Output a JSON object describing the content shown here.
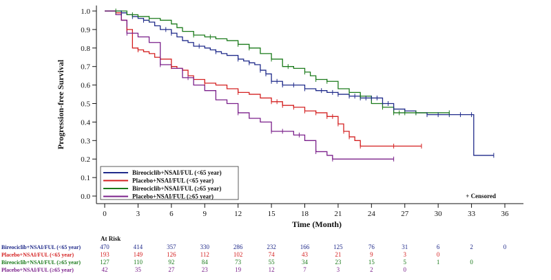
{
  "chart_data": {
    "type": "line",
    "subtype": "kaplan-meier",
    "title": "",
    "xlabel": "Time (Month)",
    "ylabel": "Progression-free Survival",
    "xlim": [
      0,
      36
    ],
    "ylim": [
      0.0,
      1.0
    ],
    "xticks": [
      "0",
      "3",
      "6",
      "9",
      "12",
      "15",
      "18",
      "21",
      "24",
      "27",
      "30",
      "33",
      "36"
    ],
    "yticks": [
      "0.0",
      "0.1",
      "0.2",
      "0.3",
      "0.4",
      "0.5",
      "0.6",
      "0.7",
      "0.8",
      "0.9",
      "1.0"
    ],
    "censored_note": "+ Censored",
    "legend_position": "bottom-left",
    "series": [
      {
        "name": "Bireociclib+NSAI/FUL (<65 year)",
        "color": "#1f2a8a",
        "steps": [
          [
            0,
            1.0
          ],
          [
            1,
            1.0
          ],
          [
            1.5,
            0.99
          ],
          [
            2,
            0.98
          ],
          [
            2.5,
            0.97
          ],
          [
            3,
            0.96
          ],
          [
            3.5,
            0.95
          ],
          [
            4,
            0.94
          ],
          [
            4.5,
            0.92
          ],
          [
            5,
            0.9
          ],
          [
            6,
            0.88
          ],
          [
            6.5,
            0.86
          ],
          [
            7,
            0.84
          ],
          [
            7.5,
            0.83
          ],
          [
            8,
            0.81
          ],
          [
            9,
            0.8
          ],
          [
            9.5,
            0.79
          ],
          [
            10,
            0.78
          ],
          [
            10.5,
            0.77
          ],
          [
            11,
            0.76
          ],
          [
            12,
            0.74
          ],
          [
            12.5,
            0.73
          ],
          [
            13,
            0.72
          ],
          [
            13.5,
            0.71
          ],
          [
            14,
            0.68
          ],
          [
            14.5,
            0.66
          ],
          [
            15,
            0.62
          ],
          [
            16,
            0.6
          ],
          [
            17,
            0.6
          ],
          [
            18,
            0.58
          ],
          [
            19,
            0.57
          ],
          [
            20,
            0.56
          ],
          [
            21,
            0.55
          ],
          [
            22,
            0.54
          ],
          [
            23,
            0.53
          ],
          [
            24,
            0.53
          ],
          [
            25,
            0.5
          ],
          [
            26,
            0.47
          ],
          [
            27,
            0.46
          ],
          [
            28,
            0.45
          ],
          [
            29,
            0.44
          ],
          [
            30,
            0.44
          ],
          [
            31,
            0.44
          ],
          [
            32,
            0.44
          ],
          [
            33,
            0.44
          ],
          [
            33.2,
            0.22
          ],
          [
            35,
            0.22
          ]
        ],
        "censored": [
          1.5,
          2.5,
          3.5,
          5.5,
          6,
          8.5,
          10,
          12,
          13,
          14,
          14.5,
          15,
          15.5,
          16,
          17,
          18,
          19.5,
          20.5,
          21,
          22,
          22.5,
          23,
          23.5,
          24,
          24.5,
          25,
          25.5,
          26,
          27,
          28,
          29,
          30,
          31,
          32,
          33,
          35
        ]
      },
      {
        "name": "Placebo+NSAI/FUL (<65 year)",
        "color": "#d42020",
        "steps": [
          [
            0,
            1.0
          ],
          [
            1,
            0.99
          ],
          [
            1.5,
            0.95
          ],
          [
            2,
            0.9
          ],
          [
            2.5,
            0.8
          ],
          [
            3,
            0.79
          ],
          [
            3.5,
            0.78
          ],
          [
            4,
            0.77
          ],
          [
            4.5,
            0.75
          ],
          [
            5,
            0.74
          ],
          [
            6,
            0.7
          ],
          [
            6.5,
            0.69
          ],
          [
            7,
            0.68
          ],
          [
            7.5,
            0.65
          ],
          [
            8,
            0.63
          ],
          [
            9,
            0.61
          ],
          [
            10,
            0.6
          ],
          [
            11,
            0.58
          ],
          [
            12,
            0.56
          ],
          [
            13,
            0.55
          ],
          [
            14,
            0.53
          ],
          [
            15,
            0.51
          ],
          [
            16,
            0.49
          ],
          [
            17,
            0.48
          ],
          [
            18,
            0.46
          ],
          [
            19,
            0.45
          ],
          [
            20,
            0.43
          ],
          [
            21,
            0.39
          ],
          [
            21.5,
            0.35
          ],
          [
            22,
            0.32
          ],
          [
            22.5,
            0.3
          ],
          [
            23,
            0.27
          ],
          [
            24,
            0.27
          ],
          [
            25,
            0.27
          ],
          [
            26,
            0.27
          ],
          [
            27,
            0.27
          ],
          [
            28.5,
            0.27
          ]
        ],
        "censored": [
          2,
          3,
          6,
          9,
          12,
          15,
          15.5,
          16,
          17,
          18,
          19,
          20,
          20.5,
          21,
          21.5,
          22,
          23,
          26,
          28.5
        ]
      },
      {
        "name": "Bireociclib+NSAI/FUL (≥65 year)",
        "color": "#1a7a1a",
        "steps": [
          [
            0,
            1.0
          ],
          [
            1,
            1.0
          ],
          [
            2,
            0.98
          ],
          [
            3,
            0.97
          ],
          [
            4,
            0.96
          ],
          [
            5,
            0.95
          ],
          [
            6,
            0.93
          ],
          [
            6.5,
            0.91
          ],
          [
            7,
            0.89
          ],
          [
            8,
            0.87
          ],
          [
            9,
            0.86
          ],
          [
            10,
            0.85
          ],
          [
            11,
            0.84
          ],
          [
            12,
            0.82
          ],
          [
            13,
            0.8
          ],
          [
            14,
            0.77
          ],
          [
            15,
            0.74
          ],
          [
            16,
            0.7
          ],
          [
            17,
            0.69
          ],
          [
            18,
            0.67
          ],
          [
            18.5,
            0.65
          ],
          [
            19,
            0.63
          ],
          [
            20,
            0.62
          ],
          [
            21,
            0.58
          ],
          [
            22,
            0.56
          ],
          [
            23,
            0.54
          ],
          [
            24,
            0.5
          ],
          [
            25,
            0.48
          ],
          [
            26,
            0.45
          ],
          [
            27,
            0.45
          ],
          [
            28,
            0.45
          ],
          [
            30,
            0.45
          ],
          [
            31,
            0.45
          ]
        ],
        "censored": [
          1,
          2.5,
          4,
          8,
          9.5,
          12,
          13,
          15,
          16.5,
          18,
          19,
          20,
          22,
          23,
          25,
          26,
          26.5,
          27,
          28,
          31
        ]
      },
      {
        "name": "Placebo+NSAI/FUL (≥65 year)",
        "color": "#7a1f8a",
        "steps": [
          [
            0,
            1.0
          ],
          [
            1,
            0.98
          ],
          [
            1.5,
            0.95
          ],
          [
            2,
            0.88
          ],
          [
            3,
            0.86
          ],
          [
            4,
            0.83
          ],
          [
            5,
            0.71
          ],
          [
            6,
            0.69
          ],
          [
            7,
            0.64
          ],
          [
            8,
            0.6
          ],
          [
            9,
            0.57
          ],
          [
            10,
            0.52
          ],
          [
            11,
            0.5
          ],
          [
            12,
            0.45
          ],
          [
            13,
            0.42
          ],
          [
            14,
            0.4
          ],
          [
            15,
            0.35
          ],
          [
            16,
            0.35
          ],
          [
            17,
            0.33
          ],
          [
            18,
            0.3
          ],
          [
            19,
            0.24
          ],
          [
            20,
            0.22
          ],
          [
            20.5,
            0.2
          ],
          [
            21,
            0.2
          ],
          [
            24,
            0.2
          ],
          [
            26,
            0.2
          ]
        ],
        "censored": [
          2,
          5,
          7.5,
          12,
          15,
          16,
          17.5,
          19,
          20.5,
          26
        ]
      }
    ],
    "at_risk": {
      "title": "At Risk",
      "rows": [
        {
          "label": "Bireociclib+NSAI/FUL (<65 year)",
          "color": "#1f2a8a",
          "values": [
            "470",
            "414",
            "357",
            "330",
            "286",
            "232",
            "166",
            "125",
            "76",
            "31",
            "6",
            "2",
            "0"
          ]
        },
        {
          "label": "Placebo+NSAI/FUL (<65 year)",
          "color": "#d42020",
          "values": [
            "193",
            "149",
            "126",
            "112",
            "102",
            "74",
            "43",
            "21",
            "9",
            "3",
            "0"
          ]
        },
        {
          "label": "Bireociclib+NSAI/FUL (≥65 year)",
          "color": "#1a7a1a",
          "values": [
            "127",
            "110",
            "92",
            "84",
            "73",
            "55",
            "34",
            "23",
            "15",
            "5",
            "1",
            "0"
          ]
        },
        {
          "label": "Placebo+NSAI/FUL (≥65 year)",
          "color": "#7a1f8a",
          "values": [
            "42",
            "35",
            "27",
            "23",
            "19",
            "12",
            "7",
            "3",
            "2",
            "0"
          ]
        }
      ]
    }
  }
}
